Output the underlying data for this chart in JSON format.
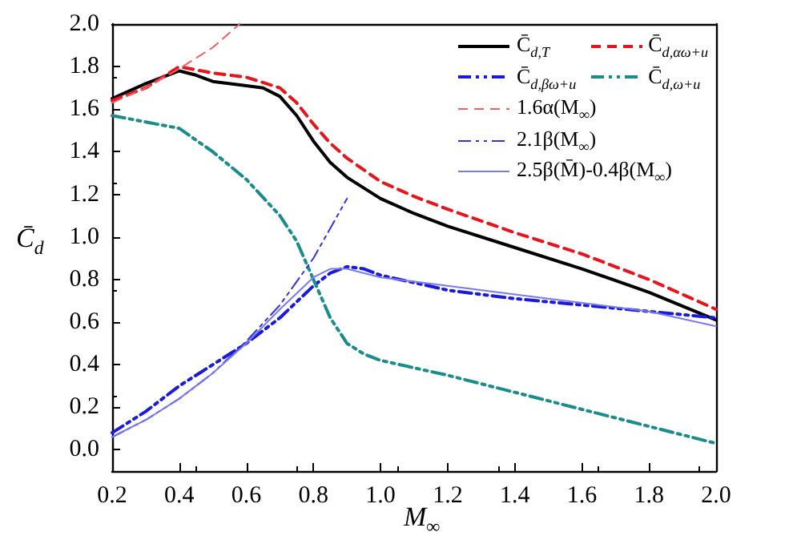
{
  "chart_data": {
    "type": "line",
    "xlabel": "M$_{∞}$",
    "ylabel": "C̄$_{d}$",
    "xlim": [
      0.2,
      2.0
    ],
    "xticks": [
      0.2,
      0.4,
      0.6,
      0.8,
      {
        "value": 1.0,
        "label": "1.0"
      },
      1.2,
      1.4,
      1.6,
      1.8,
      {
        "value": 2.0,
        "label": "2.0"
      }
    ],
    "ylim": [
      -0.1,
      2.0
    ],
    "yticks": [
      {
        "value": 0,
        "label": "0.0"
      },
      0.2,
      0.4,
      0.6,
      0.8,
      {
        "value": 1.0,
        "label": "1.0"
      },
      1.2,
      1.4,
      1.6,
      1.8,
      {
        "value": 2.0,
        "label": "2.0"
      }
    ],
    "grid": false,
    "legend": "top right",
    "marker": "none",
    "series": [
      {
        "name": "C̄$_{d,T}$",
        "color": "#000000",
        "line_style": "solid",
        "x": [
          0.2,
          0.3,
          0.4,
          0.45,
          0.5,
          0.6,
          0.65,
          0.7,
          0.75,
          0.8,
          0.85,
          0.9,
          1.0,
          1.1,
          1.2,
          1.4,
          1.6,
          1.8,
          2.0
        ],
        "values": [
          1.65,
          1.72,
          1.78,
          1.76,
          1.73,
          1.71,
          1.7,
          1.66,
          1.57,
          1.45,
          1.35,
          1.28,
          1.18,
          1.11,
          1.05,
          0.95,
          0.85,
          0.74,
          0.61
        ]
      },
      {
        "name": "C̄$_{d,αω+u}$",
        "color": "#e8141b",
        "line_style": "dashed",
        "x": [
          0.2,
          0.3,
          0.4,
          0.5,
          0.6,
          0.7,
          0.75,
          0.8,
          0.85,
          0.9,
          1.0,
          1.1,
          1.2,
          1.4,
          1.6,
          1.8,
          2.0
        ],
        "values": [
          1.64,
          1.7,
          1.8,
          1.77,
          1.75,
          1.7,
          1.63,
          1.53,
          1.44,
          1.37,
          1.26,
          1.19,
          1.13,
          1.02,
          0.92,
          0.8,
          0.66
        ]
      },
      {
        "name": "C̄$_{d,βω+u}$",
        "color": "#1a1adb",
        "line_style": "dashdot",
        "x": [
          0.2,
          0.3,
          0.4,
          0.5,
          0.6,
          0.7,
          0.8,
          0.85,
          0.9,
          0.95,
          1.0,
          1.2,
          1.4,
          1.6,
          1.8,
          2.0
        ],
        "values": [
          0.08,
          0.18,
          0.3,
          0.4,
          0.5,
          0.62,
          0.77,
          0.83,
          0.86,
          0.85,
          0.82,
          0.75,
          0.71,
          0.68,
          0.65,
          0.62
        ]
      },
      {
        "name": "C̄$_{d,ω+u}$",
        "color": "#1a8c8c",
        "line_style": "dashdot",
        "x": [
          0.2,
          0.3,
          0.4,
          0.5,
          0.6,
          0.7,
          0.75,
          0.8,
          0.85,
          0.9,
          0.95,
          1.0,
          1.2,
          1.4,
          1.6,
          1.8,
          2.0
        ],
        "values": [
          1.57,
          1.54,
          1.51,
          1.4,
          1.27,
          1.1,
          0.98,
          0.8,
          0.62,
          0.5,
          0.45,
          0.42,
          0.35,
          0.27,
          0.19,
          0.11,
          0.03
        ]
      },
      {
        "name": "1.6α(M$_{∞}$)",
        "color": "#f06060",
        "line_style": "dashed",
        "x": [
          0.2,
          0.3,
          0.4,
          0.5,
          0.58
        ],
        "values": [
          1.63,
          1.7,
          1.79,
          1.89,
          2.0
        ]
      },
      {
        "name": "2.1β(M$_{∞}$)",
        "color": "#3333dd",
        "line_style": "dashdot",
        "x": [
          0.2,
          0.3,
          0.4,
          0.5,
          0.6,
          0.7,
          0.8,
          0.9
        ],
        "values": [
          0.06,
          0.14,
          0.24,
          0.36,
          0.51,
          0.68,
          0.9,
          1.18
        ]
      },
      {
        "name": "2.5β(M̄)-0.4β(M$_{∞}$)",
        "color": "#7a7aee",
        "line_style": "solid",
        "x": [
          0.2,
          0.3,
          0.4,
          0.5,
          0.6,
          0.7,
          0.8,
          0.85,
          0.9,
          1.0,
          1.2,
          1.4,
          1.6,
          1.8,
          2.0
        ],
        "values": [
          0.06,
          0.14,
          0.24,
          0.36,
          0.5,
          0.66,
          0.81,
          0.85,
          0.85,
          0.81,
          0.77,
          0.73,
          0.69,
          0.65,
          0.58
        ]
      }
    ]
  }
}
